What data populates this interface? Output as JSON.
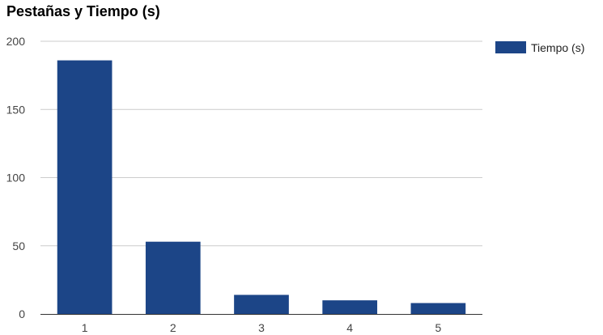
{
  "chart_data": {
    "type": "bar",
    "title": "Pestañas y Tiempo (s)",
    "xlabel": "",
    "ylabel": "",
    "categories": [
      "1",
      "2",
      "3",
      "4",
      "5"
    ],
    "series": [
      {
        "name": "Tiempo (s)",
        "values": [
          186,
          53,
          14,
          10,
          8
        ],
        "color": "#1c4587"
      }
    ],
    "ylim": [
      0,
      200
    ],
    "y_ticks": [
      "0",
      "50",
      "100",
      "150",
      "200"
    ],
    "grid": true,
    "legend_position": "right"
  }
}
